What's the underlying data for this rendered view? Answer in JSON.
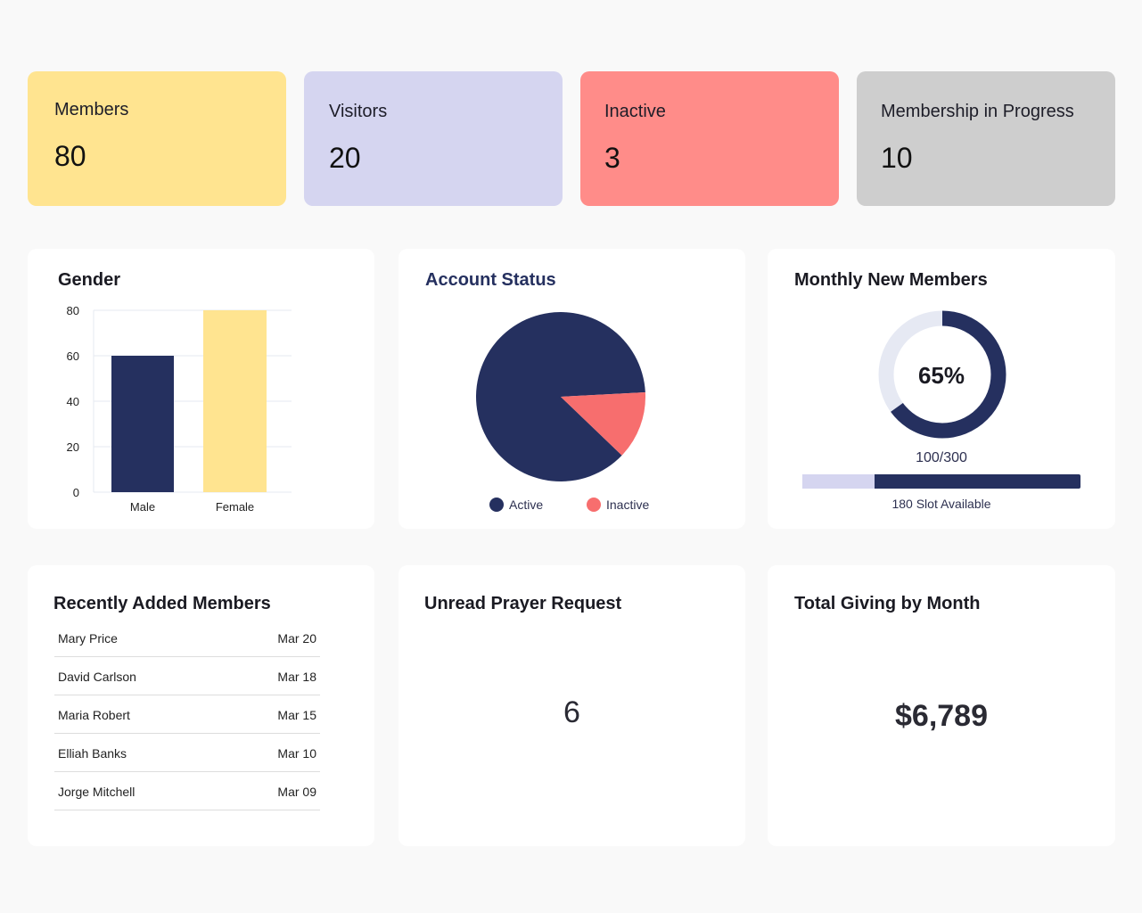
{
  "stats": [
    {
      "label": "Members",
      "value": "80",
      "color": "#ffe490"
    },
    {
      "label": "Visitors",
      "value": "20",
      "color": "#d5d5f0"
    },
    {
      "label": "Inactive",
      "value": "3",
      "color": "#ff8c89"
    },
    {
      "label": "Membership in Progress",
      "value": "10",
      "color": "#cecece"
    }
  ],
  "gender": {
    "title": "Gender",
    "chart_data": {
      "type": "bar",
      "categories": [
        "Male",
        "Female"
      ],
      "values": [
        60,
        80
      ],
      "colors": [
        "#25305f",
        "#ffe490"
      ],
      "yticks": [
        "0",
        "20",
        "40",
        "60",
        "80"
      ],
      "ylim": [
        0,
        80
      ],
      "grid": true
    }
  },
  "account": {
    "title": "Account Status",
    "chart_data": {
      "type": "pie",
      "labels": [
        "Active",
        "Inactive"
      ],
      "values": [
        87,
        13
      ],
      "colors": [
        "#25305f",
        "#f76e6e"
      ],
      "legend": "bottom"
    }
  },
  "monthly": {
    "title": "Monthly New Members",
    "percent_label": "65%",
    "percent": 65,
    "count_label": "100/300",
    "progress_light_fraction": 0.26,
    "slots_label": "180 Slot Available"
  },
  "recent": {
    "title": "Recently Added Members",
    "rows": [
      {
        "name": "Mary Price",
        "date": "Mar 20"
      },
      {
        "name": "David Carlson",
        "date": "Mar 18"
      },
      {
        "name": "Maria Robert",
        "date": "Mar 15"
      },
      {
        "name": "Elliah Banks",
        "date": "Mar 10"
      },
      {
        "name": "Jorge Mitchell",
        "date": "Mar 09"
      }
    ]
  },
  "prayer": {
    "title": "Unread Prayer Request",
    "value": "6"
  },
  "giving": {
    "title": "Total Giving by Month",
    "value": "$6,789"
  }
}
